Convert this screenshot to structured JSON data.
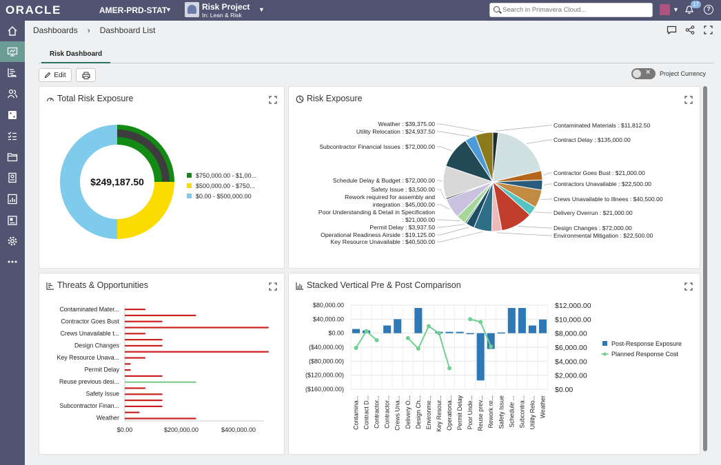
{
  "topbar": {
    "logo": "ORACLE",
    "environment": "AMER-PRD-STAT",
    "project_name": "Risk Project",
    "project_sub": "In: Lean & Risk",
    "search_placeholder": "Search in Primavera Cloud...",
    "notifications": "17",
    "help": "?"
  },
  "breadcrumb": [
    "Dashboards",
    "Dashboard List"
  ],
  "tabs": [
    "Risk Dashboard"
  ],
  "toolbar": {
    "edit_label": "Edit",
    "project_currency_label": "Project Currency"
  },
  "cards": {
    "total_risk": {
      "title": "Total Risk Exposure"
    },
    "risk_exposure": {
      "title": "Risk Exposure"
    },
    "threats": {
      "title": "Threats & Opportunities"
    },
    "stacked": {
      "title": "Stacked Vertical Pre & Post Comparison"
    }
  },
  "colors": {
    "accent": "#2a6f63",
    "topbar": "#515471",
    "threat_bar": "#cc1f1f",
    "opportunity_bar": "#7fc98d",
    "donut_green": "#138a13",
    "donut_yellow": "#fbdc00",
    "donut_blue": "#7fcbeb",
    "bar_blue": "#2d78b5",
    "line_green": "#6fcf8f"
  },
  "sidebar_icons": [
    "home-icon",
    "dashboard-icon",
    "list-icon",
    "people-icon",
    "dice-icon",
    "checklist-icon",
    "folder-icon",
    "register-icon",
    "report-icon",
    "layout-icon",
    "gear-icon",
    "more-icon"
  ],
  "chart_data": [
    {
      "type": "pie",
      "subtype": "donut",
      "title": "Total Risk Exposure",
      "center_value": "$249,187.50",
      "legend": [
        "$750,000.00 - $1,00...",
        "$500,000.00 - $750...",
        "$0.00 - $500,000.00"
      ],
      "segments": [
        {
          "label": "$750,000.00 - $1,00...",
          "fraction": 0.25,
          "color": "#138a13"
        },
        {
          "label": "$500,000.00 - $750...",
          "fraction": 0.25,
          "color": "#fbdc00"
        },
        {
          "label": "$0.00 - $500,000.00",
          "fraction": 0.5,
          "color": "#7fcbeb"
        }
      ],
      "gauge_fraction": 0.249
    },
    {
      "type": "pie",
      "title": "Risk Exposure",
      "slices": [
        {
          "label": "Contaminated Materials : $11,812.50",
          "value": 11812.5,
          "color": "#1e2d2f"
        },
        {
          "label": "Contract Delay : $135,000.00",
          "value": 135000,
          "color": "#d0e0e0"
        },
        {
          "label": "Contractor Goes Bust : $21,000.00",
          "value": 21000,
          "color": "#b5641c"
        },
        {
          "label": "Contractors Unavailable : $22,500.00",
          "value": 22500,
          "color": "#2a5d7c"
        },
        {
          "label": "Crews Unavailable to Illnees : $40,500.00",
          "value": 40500,
          "color": "#c28b41"
        },
        {
          "label": "Delivery Overrun : $21,000.00",
          "value": 21000,
          "color": "#55c4c0"
        },
        {
          "label": "Design Changes : $72,000.00",
          "value": 72000,
          "color": "#c03d2c"
        },
        {
          "label": "Environmental Mitigation : $22,500.00",
          "value": 22500,
          "color": "#f0b9b9"
        },
        {
          "label": "Key Resource Unavailable : $40,500.00",
          "value": 40500,
          "color": "#2e6e86"
        },
        {
          "label": "Operational Readiness Airside : $19,125.00",
          "value": 19125,
          "color": "#1e4e66"
        },
        {
          "label": "Permit Delay : $3,937.50",
          "value": 3937.5,
          "color": "#4a9a6a"
        },
        {
          "label": "Poor Understanding & Detail in Specification : $21,000.00",
          "value": 21000,
          "color": "#a6d69a"
        },
        {
          "label": "Rework required for assembly and integration : $45,000.00",
          "value": 45000,
          "color": "#c8c2e0"
        },
        {
          "label": "Safety Issue : $3,500.00",
          "value": 3500,
          "color": "#3a3a44"
        },
        {
          "label": "Schedule Delay & Budget : $72,000.00",
          "value": 72000,
          "color": "#d8d8d8"
        },
        {
          "label": "Subcontractor Financial Issues : $72,000.00",
          "value": 72000,
          "color": "#224a56"
        },
        {
          "label": "Utility Relocation : $24,937.50",
          "value": 24937.5,
          "color": "#4c9ad8"
        },
        {
          "label": "Weather : $39,375.00",
          "value": 39375,
          "color": "#8a7a1c"
        }
      ]
    },
    {
      "type": "bar",
      "orientation": "horizontal",
      "title": "Threats & Opportunities",
      "x_ticks": [
        "$0.00",
        "$200,000.00",
        "$400,000.00"
      ],
      "xlim": [
        0,
        470000
      ],
      "y_labels": [
        "Contaminated Mater...",
        "Contractor Goes Bust",
        "Crews Unavailable t...",
        "Design Changes",
        "Key Resource Unava...",
        "Permit Delay",
        "Reuse previous desi...",
        "Safety Issue",
        "Subcontractor Finan...",
        "Weather"
      ],
      "bars": [
        {
          "value": 63000,
          "kind": "threat"
        },
        {
          "value": 218000,
          "kind": "threat"
        },
        {
          "value": 115000,
          "kind": "threat"
        },
        {
          "value": 440000,
          "kind": "threat"
        },
        {
          "value": 63000,
          "kind": "threat"
        },
        {
          "value": 115000,
          "kind": "threat"
        },
        {
          "value": 115000,
          "kind": "threat"
        },
        {
          "value": 440000,
          "kind": "threat"
        },
        {
          "value": 63000,
          "kind": "threat"
        },
        {
          "value": 18000,
          "kind": "threat"
        },
        {
          "value": 18000,
          "kind": "threat"
        },
        {
          "value": 115000,
          "kind": "threat"
        },
        {
          "value": 218000,
          "kind": "opportunity"
        },
        {
          "value": 63000,
          "kind": "threat"
        },
        {
          "value": 115000,
          "kind": "threat"
        },
        {
          "value": 115000,
          "kind": "threat"
        },
        {
          "value": 115000,
          "kind": "threat"
        },
        {
          "value": 45000,
          "kind": "threat"
        },
        {
          "value": 218000,
          "kind": "threat"
        }
      ]
    },
    {
      "type": "bar",
      "subtype": "bar-line-combo",
      "title": "Stacked Vertical Pre & Post Comparison",
      "categories": [
        "Contamina...",
        "Contract D...",
        "Contractor...",
        "Contractor...",
        "Crews Una...",
        "Delivery O...",
        "Design Ch...",
        "Environme...",
        "Key Resour...",
        "Operationa...",
        "Permit Delay",
        "Poor Unde...",
        "Reuse prev...",
        "Rework re...",
        "Safety Issue",
        "Schedule ...",
        "Subcontra...",
        "Utility Relo...",
        "Weather"
      ],
      "y_left_ticks": [
        "$80,000.00",
        "$40,000.00",
        "$0.00",
        "($40,000.00)",
        "($80,000.00)",
        "($120,000.00)",
        "($160,000.00)"
      ],
      "y_left_lim": [
        -160000,
        80000
      ],
      "y_right_ticks": [
        "$12,000.00",
        "$10,000.00",
        "$8,000.00",
        "$6,000.00",
        "$4,000.00",
        "$2,000.00",
        "$0.00"
      ],
      "y_right_lim": [
        0,
        12000
      ],
      "series": [
        {
          "name": "Post-Response Exposure",
          "type": "bar",
          "axis": "left",
          "values": [
            12000,
            8000,
            null,
            22000,
            40000,
            null,
            72000,
            null,
            4000,
            4000,
            4000,
            -2000,
            -135000,
            -45000,
            2000,
            72000,
            72000,
            22000,
            39000
          ]
        },
        {
          "name": "Planned Response Cost",
          "type": "line",
          "axis": "right",
          "values": [
            5900,
            8300,
            7000,
            null,
            null,
            7300,
            5800,
            9000,
            8000,
            3000,
            null,
            10000,
            9600,
            6100,
            null,
            null,
            null,
            null,
            null
          ]
        }
      ]
    }
  ]
}
